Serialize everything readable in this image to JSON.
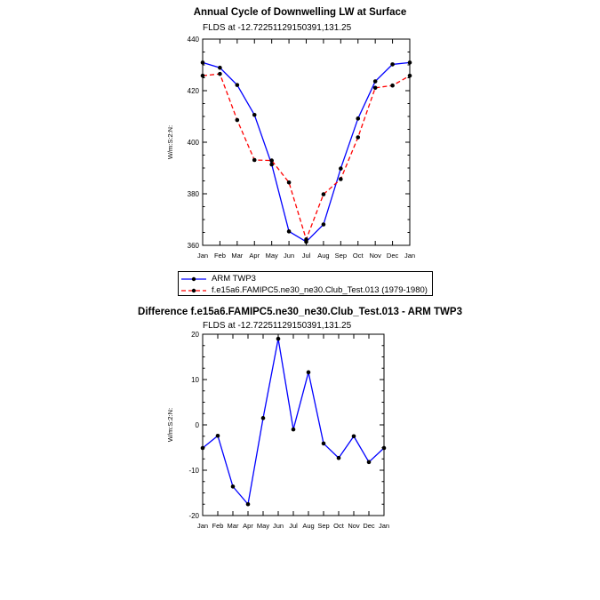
{
  "chart_data": [
    {
      "type": "line",
      "title": "Annual Cycle of Downwelling LW at Surface",
      "subtitle": "FLDS at -12.72251129150391,131.25",
      "ylabel": "W/m:S:2:N:",
      "categories": [
        "Jan",
        "Feb",
        "Mar",
        "Apr",
        "May",
        "Jun",
        "Jul",
        "Aug",
        "Sep",
        "Oct",
        "Nov",
        "Dec",
        "Jan"
      ],
      "ylim": [
        360,
        440
      ],
      "yticks": [
        360,
        380,
        400,
        420,
        440
      ],
      "legend_placement": "below",
      "series": [
        {
          "name": "ARM TWP3",
          "color": "#0000ff",
          "dash": "solid",
          "values": [
            430.9,
            428.9,
            422.2,
            410.6,
            391.4,
            365.4,
            361.4,
            368.1,
            389.8,
            409.2,
            423.6,
            430.2,
            430.9
          ]
        },
        {
          "name": "f.e15a6.FAMIPC5.ne30_ne30.Club_Test.013 (1979-1980)",
          "color": "#ff0000",
          "dash": "dashed",
          "values": [
            425.8,
            426.5,
            408.6,
            393.1,
            392.9,
            384.4,
            362.3,
            379.8,
            385.7,
            401.9,
            421.1,
            422.0,
            425.8
          ]
        }
      ]
    },
    {
      "type": "line",
      "title": "Difference f.e15a6.FAMIPC5.ne30_ne30.Club_Test.013 - ARM TWP3",
      "subtitle": "FLDS at -12.72251129150391,131.25",
      "ylabel": "W/m:S:2:N:",
      "categories": [
        "Jan",
        "Feb",
        "Mar",
        "Apr",
        "May",
        "Jun",
        "Jul",
        "Aug",
        "Sep",
        "Oct",
        "Nov",
        "Dec",
        "Jan"
      ],
      "ylim": [
        -20,
        20
      ],
      "yticks": [
        -20,
        -10,
        0,
        10,
        20
      ],
      "series": [
        {
          "name": "",
          "color": "#0000ff",
          "dash": "solid",
          "values": [
            -5.1,
            -2.4,
            -13.6,
            -17.5,
            1.5,
            19.0,
            -1.0,
            11.6,
            -4.1,
            -7.3,
            -2.5,
            -8.2,
            -5.1
          ]
        }
      ]
    }
  ]
}
